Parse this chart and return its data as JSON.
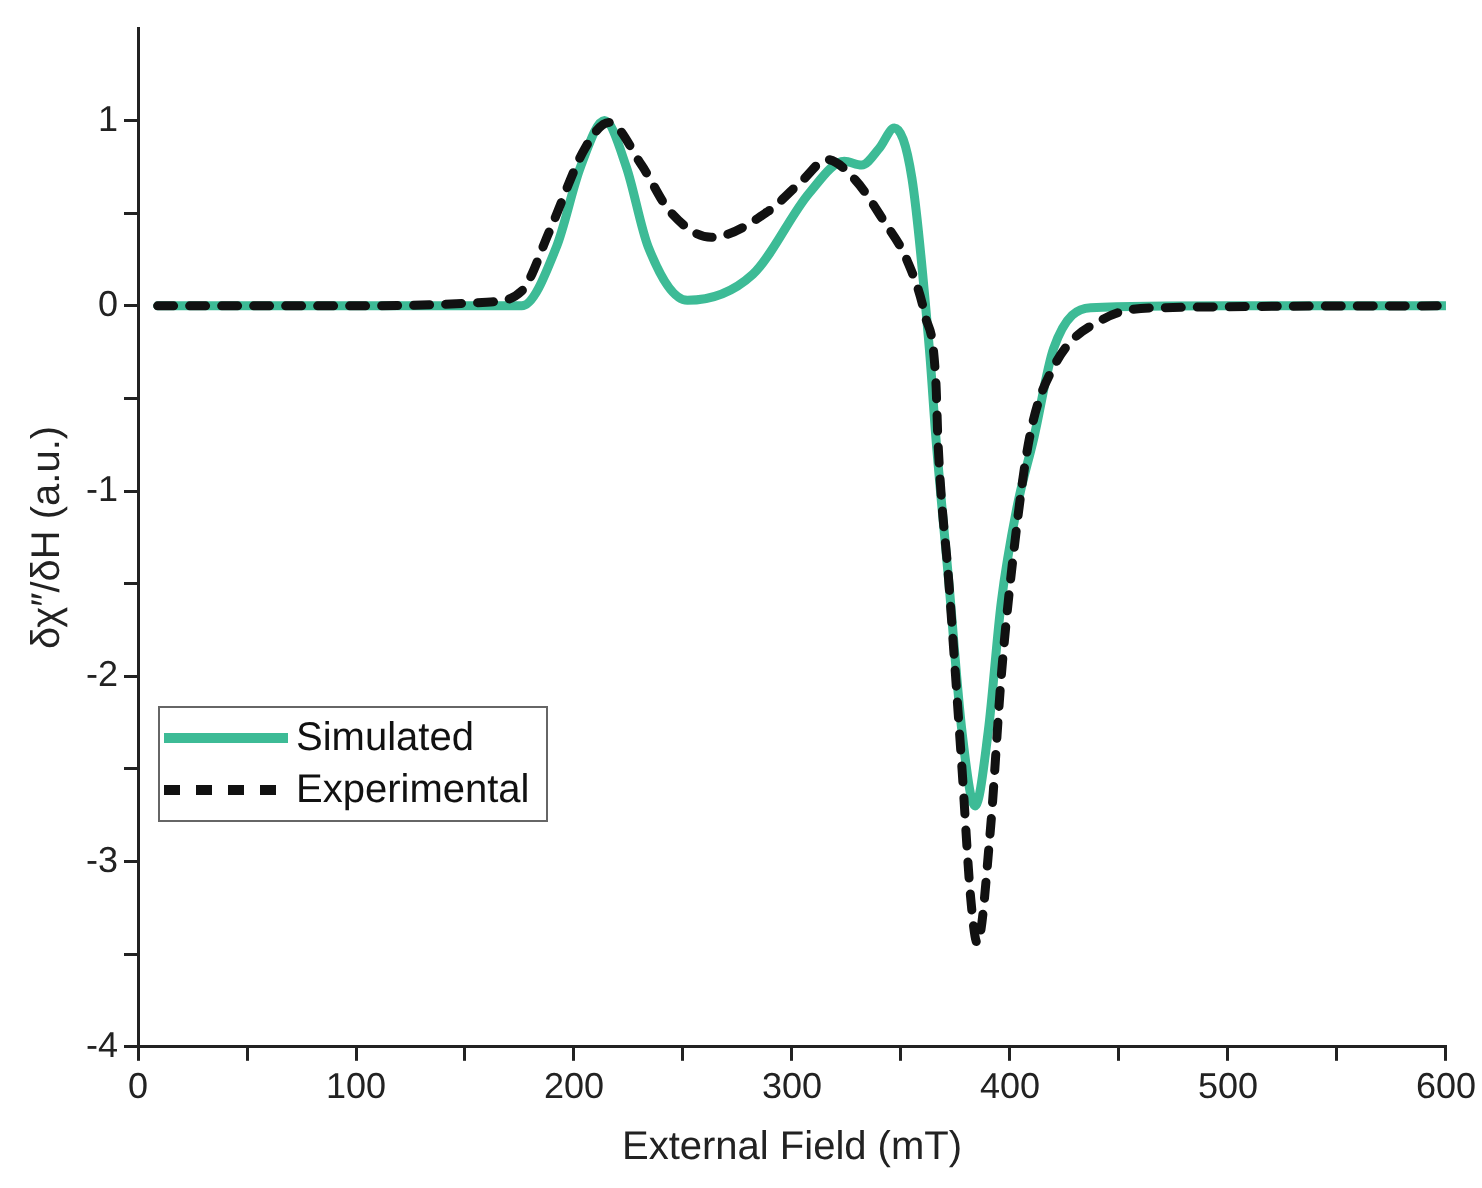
{
  "chart_data": {
    "type": "line",
    "xlabel": "External Field (mT)",
    "ylabel": "δχ″/δH (a.u.)",
    "xlim": [
      0,
      600
    ],
    "ylim": [
      -4,
      1.5
    ],
    "xticks": [
      0,
      {
        "value": 50,
        "label": null
      },
      100,
      {
        "value": 150,
        "label": null
      },
      200,
      {
        "value": 250,
        "label": null
      },
      300,
      {
        "value": 350,
        "label": null
      },
      400,
      {
        "value": 450,
        "label": null
      },
      500,
      {
        "value": 550,
        "label": null
      },
      600
    ],
    "yticks": [
      -4,
      {
        "value": -3.5,
        "label": null
      },
      -3,
      {
        "value": -2.5,
        "label": null
      },
      -2,
      {
        "value": -1.5,
        "label": null
      },
      -1,
      {
        "value": -0.5,
        "label": null
      },
      0,
      {
        "value": 0.5,
        "label": null
      },
      1
    ],
    "grid": false,
    "legend": "bottom left",
    "marker": "none",
    "series": [
      {
        "name": "Simulated",
        "color": "#3dbb96",
        "line_style": "solid",
        "x": [
          9,
          100,
          176,
          192,
          203,
          214,
          224,
          234,
          252,
          282,
          308,
          324,
          332,
          340,
          347,
          355,
          363,
          366,
          372,
          378,
          384,
          390,
          396,
          403,
          411,
          420,
          437,
          500,
          600
        ],
        "values": [
          0,
          0,
          0,
          0.32,
          0.75,
          1.0,
          0.75,
          0.32,
          0.03,
          0.17,
          0.61,
          0.78,
          0.76,
          0.85,
          0.96,
          0.69,
          -0.23,
          -0.71,
          -1.5,
          -2.3,
          -2.7,
          -2.3,
          -1.6,
          -1.1,
          -0.71,
          -0.23,
          -0.01,
          0,
          0
        ]
      },
      {
        "name": "Experimental",
        "color": "#111111",
        "line_style": "dashed",
        "x": [
          9,
          100,
          160,
          176,
          189,
          205,
          216,
          231,
          244,
          263,
          289,
          305,
          316,
          329,
          342,
          353,
          361,
          366,
          367,
          372,
          378,
          382,
          385,
          391,
          396,
          402,
          409,
          420,
          443,
          470,
          600
        ],
        "values": [
          0,
          0,
          0.02,
          0.08,
          0.41,
          0.85,
          0.99,
          0.76,
          0.51,
          0.37,
          0.51,
          0.68,
          0.79,
          0.68,
          0.46,
          0.24,
          -0.05,
          -0.41,
          -0.74,
          -1.5,
          -2.5,
          -3.2,
          -3.44,
          -2.83,
          -2.0,
          -1.3,
          -0.71,
          -0.33,
          -0.07,
          -0.01,
          0
        ]
      }
    ]
  }
}
